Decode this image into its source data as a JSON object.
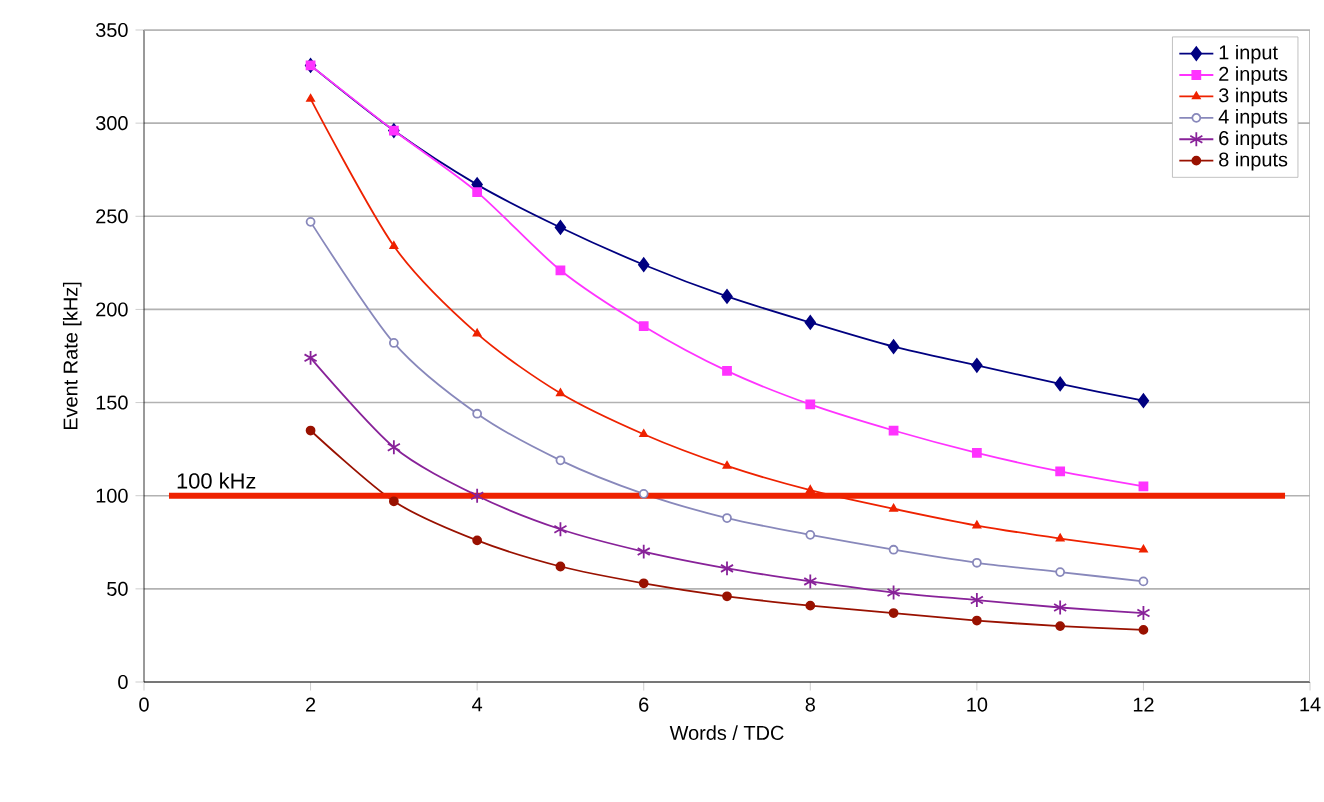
{
  "chart_data": {
    "type": "line",
    "xlabel": "Words / TDC",
    "ylabel": "Event Rate [kHz]",
    "x": [
      2,
      3,
      4,
      5,
      6,
      7,
      8,
      9,
      10,
      11,
      12
    ],
    "xlim": [
      0,
      14
    ],
    "xticks": [
      0,
      2,
      4,
      6,
      8,
      10,
      12,
      14
    ],
    "ylim": [
      0,
      350
    ],
    "yticks": [
      0,
      50,
      100,
      150,
      200,
      250,
      300,
      350
    ],
    "grid": "y",
    "legend": "top right",
    "series": [
      {
        "name": "1 input",
        "color": "#000080",
        "marker": "diamond",
        "values": [
          331,
          296,
          267,
          244,
          224,
          207,
          193,
          180,
          170,
          160,
          151
        ]
      },
      {
        "name": "2 inputs",
        "color": "#ff33ff",
        "marker": "square",
        "values": [
          331,
          296,
          263,
          221,
          191,
          167,
          149,
          135,
          123,
          113,
          105
        ]
      },
      {
        "name": "3 inputs",
        "color": "#ee2200",
        "marker": "triangle",
        "values": [
          313,
          234,
          187,
          155,
          133,
          116,
          103,
          93,
          84,
          77,
          71
        ]
      },
      {
        "name": "4 inputs",
        "color": "#8888bb",
        "marker": "circle",
        "values": [
          247,
          182,
          144,
          119,
          101,
          88,
          79,
          71,
          64,
          59,
          54
        ]
      },
      {
        "name": "6 inputs",
        "color": "#882299",
        "marker": "cross",
        "values": [
          174,
          126,
          100,
          82,
          70,
          61,
          54,
          48,
          44,
          40,
          37
        ]
      },
      {
        "name": "8 inputs",
        "color": "#991100",
        "marker": "circle",
        "values": [
          135,
          97,
          76,
          62,
          53,
          46,
          41,
          37,
          33,
          30,
          28
        ]
      }
    ],
    "ref_lines": [
      {
        "axis": "y",
        "value": 100,
        "label": "100 kHz",
        "color": "#ee2200"
      }
    ]
  }
}
